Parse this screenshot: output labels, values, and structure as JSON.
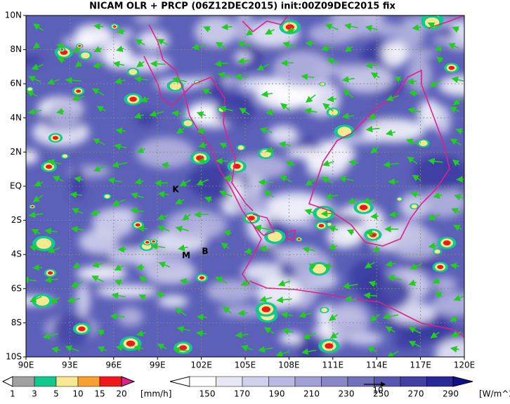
{
  "title": "NICAM OLR + PRCP (06Z12DEC2015) init:00Z09DEC2015 fix",
  "lat_labels": [
    "10N",
    "8N",
    "6N",
    "4N",
    "2N",
    "EQ",
    "2S",
    "4S",
    "6S",
    "8S",
    "10S"
  ],
  "lon_labels": [
    "90E",
    "93E",
    "96E",
    "99E",
    "102E",
    "105E",
    "108E",
    "111E",
    "114E",
    "117E",
    "120E"
  ],
  "markers": [
    "K",
    "M",
    "B"
  ],
  "precip_legend": {
    "labels": [
      "1",
      "3",
      "5",
      "10",
      "15",
      "20"
    ],
    "unit": "[mm/h]",
    "colors": [
      "#a0a0a0",
      "#10c890",
      "#f8e890",
      "#f8a030",
      "#f01818",
      "#e0208c"
    ]
  },
  "olr_legend": {
    "labels": [
      "150",
      "170",
      "190",
      "210",
      "230",
      "250",
      "270",
      "290"
    ],
    "unit": "[W/m^2]",
    "colors": [
      "#ffffff",
      "#e8e8f4",
      "#d0d0ec",
      "#b8b8e0",
      "#a0a0d4",
      "#8888c8",
      "#7070bc",
      "#5858b0",
      "#4040a4",
      "#282898",
      "#10108c"
    ]
  },
  "vector_ref": "10"
}
